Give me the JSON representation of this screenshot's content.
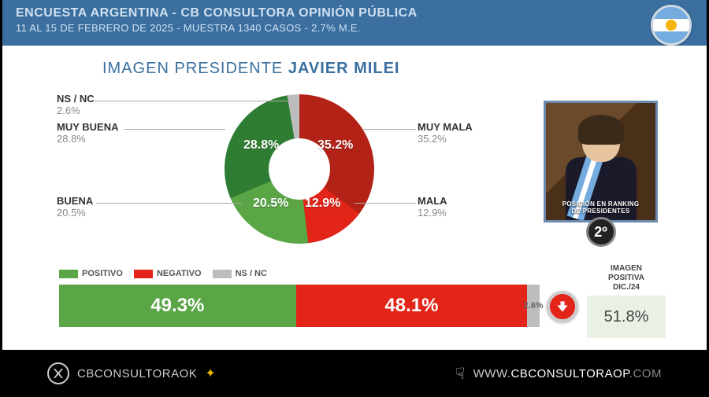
{
  "header": {
    "title": "ENCUESTA ARGENTINA - CB CONSULTORA OPINIÓN PÚBLICA",
    "subtitle": "11 AL 15 DE FEBRERO DE 2025 - MUESTRA 1340 CASOS - 2.7% M.E.",
    "background_color": "#3a6fa0",
    "text_color": "#d0e0ef"
  },
  "section": {
    "label": "IMAGEN PRESIDENTE",
    "name": "JAVIER MILEI",
    "color": "#3a6fa0"
  },
  "donut": {
    "type": "donut",
    "hole_ratio": 0.41,
    "slices": [
      {
        "key": "muy_mala",
        "label": "MUY MALA",
        "value": 35.2,
        "value_label": "35.2%",
        "color": "#b22217"
      },
      {
        "key": "mala",
        "label": "MALA",
        "value": 12.9,
        "value_label": "12.9%",
        "color": "#e32418"
      },
      {
        "key": "buena",
        "label": "BUENA",
        "value": 20.5,
        "value_label": "20.5%",
        "color": "#5aa646"
      },
      {
        "key": "muy_buena",
        "label": "MUY BUENA",
        "value": 28.8,
        "value_label": "28.8%",
        "color": "#2f7d32"
      },
      {
        "key": "nsnc",
        "label": "NS / NC",
        "value": 2.6,
        "value_label": "2.6%",
        "color": "#bdbdbd"
      }
    ],
    "start_angle_deg": 0
  },
  "photo": {
    "caption_line1": "POSICIÓN EN RANKING",
    "caption_line2": "DE PRESIDENTES",
    "rank": "2º",
    "border_color": "#6a89b0"
  },
  "legend": {
    "items": [
      {
        "label": "POSITIVO",
        "color": "#5aa646"
      },
      {
        "label": "NEGATIVO",
        "color": "#e32418"
      },
      {
        "label": "NS / NC",
        "color": "#bdbdbd"
      }
    ]
  },
  "bar": {
    "type": "stacked-bar",
    "segments": [
      {
        "key": "positivo",
        "value": 49.3,
        "value_label": "49.3%",
        "color": "#5aa646",
        "text_color": "#ffffff"
      },
      {
        "key": "negativo",
        "value": 48.1,
        "value_label": "48.1%",
        "color": "#e32418",
        "text_color": "#ffffff"
      },
      {
        "key": "nsnc",
        "value": 2.6,
        "value_label": "2.6%",
        "color": "#bdbdbd",
        "text_color": "#666666"
      }
    ],
    "trend": "down",
    "trend_color": "#e32418"
  },
  "previous": {
    "label_line1": "IMAGEN",
    "label_line2": "POSITIVA",
    "label_line3": "DIC./24",
    "value": "51.8%",
    "box_color": "#e8f1e4"
  },
  "footer": {
    "handle": "CBCONSULTORAOK",
    "url_prefix": "WWW.",
    "url_domain": "CBCONSULTORAOP",
    "url_tld": ".COM",
    "background_color": "#000000"
  }
}
